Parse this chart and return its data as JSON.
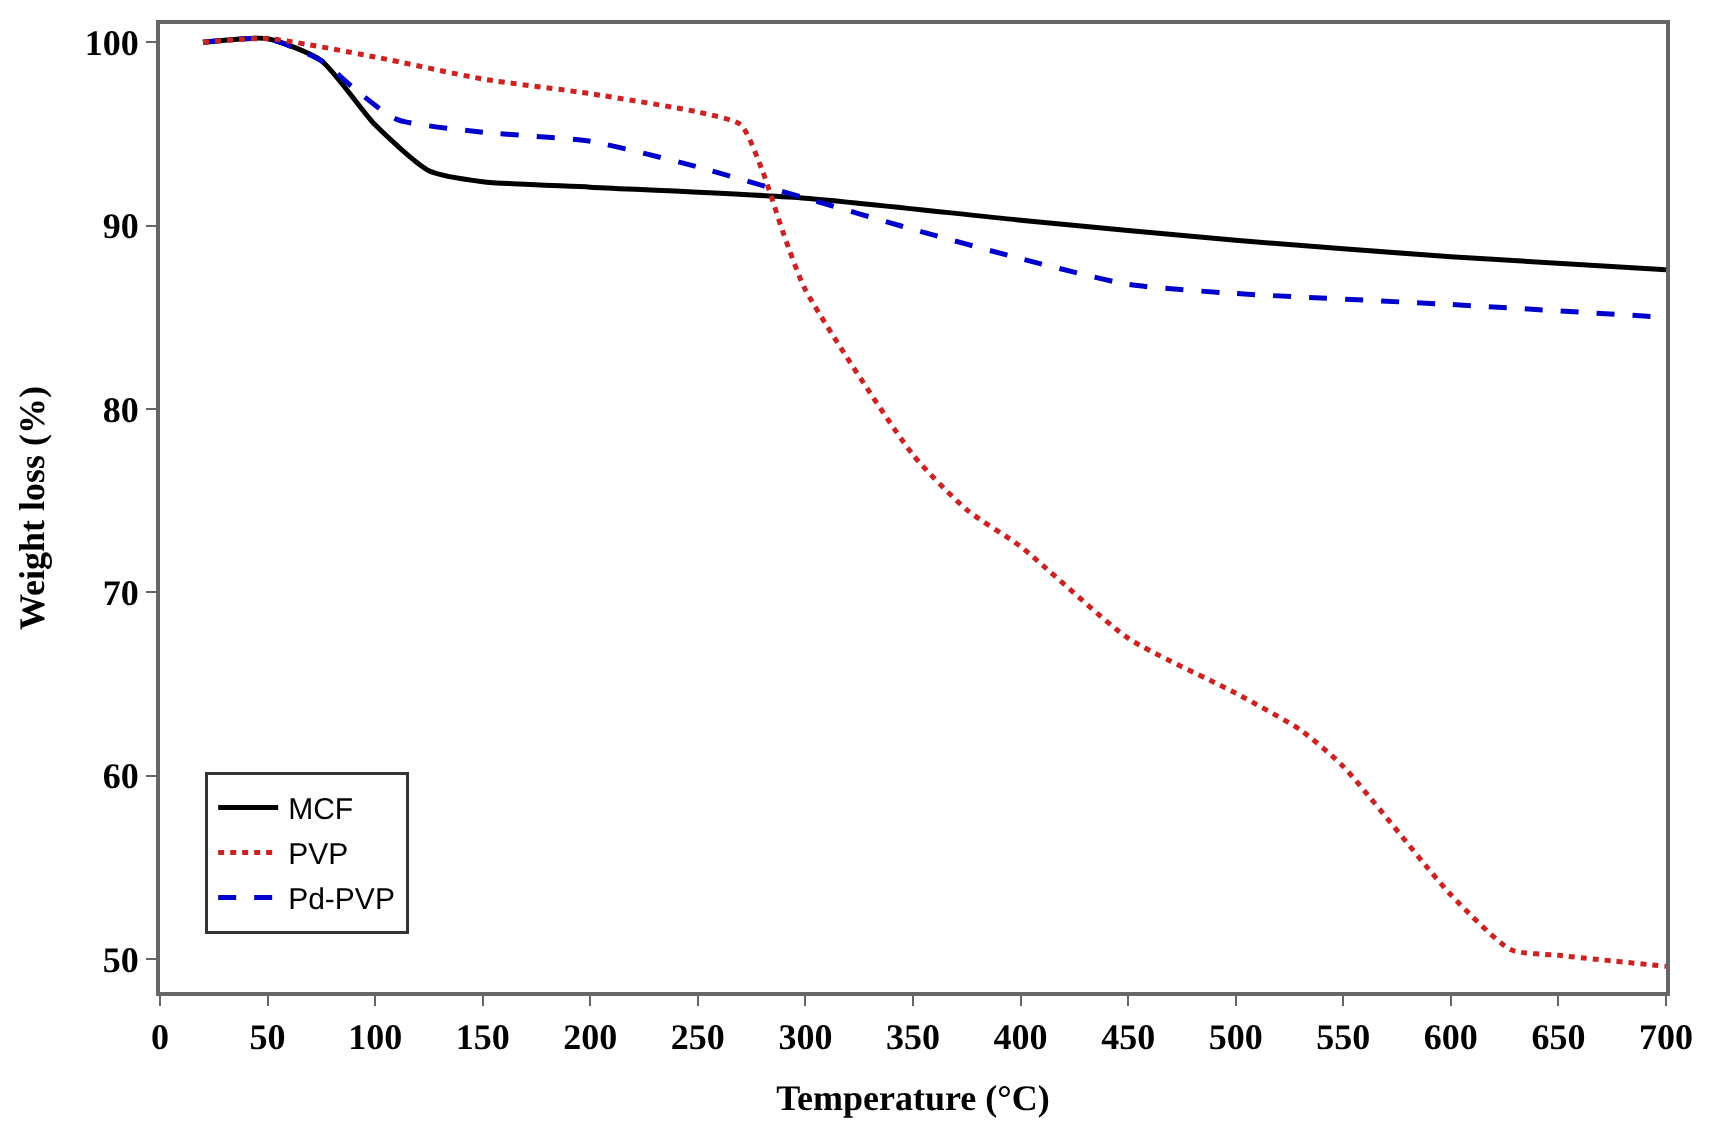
{
  "chart_data": {
    "type": "line",
    "xlabel": "Temperature (°C)",
    "ylabel": "Weight loss (%)",
    "xlim": [
      0,
      700
    ],
    "xticks": [
      0,
      50,
      100,
      150,
      200,
      250,
      300,
      350,
      400,
      450,
      500,
      550,
      600,
      650,
      700
    ],
    "ylim": [
      48.2,
      101
    ],
    "yticks": [
      50,
      60,
      70,
      80,
      90,
      100
    ],
    "legend": "bottom left",
    "marker": "none",
    "series": [
      {
        "name": "MCF",
        "color": "#000000",
        "line_style": "solid",
        "x": [
          20,
          50,
          75,
          100,
          125,
          150,
          200,
          300,
          400,
          500,
          600,
          700
        ],
        "values": [
          100.0,
          100.2,
          99,
          95.5,
          93,
          92.4,
          92.1,
          91.5,
          90.3,
          89.2,
          88.3,
          87.6
        ]
      },
      {
        "name": "PVP",
        "color": "#cc2222",
        "line_style": "dotted",
        "x": [
          20,
          50,
          100,
          150,
          200,
          250,
          270,
          280,
          290,
          300,
          350,
          375,
          400,
          450,
          500,
          530,
          550,
          600,
          628,
          650,
          700
        ],
        "values": [
          100,
          100.2,
          99.2,
          98,
          97.2,
          96.2,
          95.5,
          93,
          89.5,
          86.5,
          77.5,
          74.5,
          72.5,
          67.5,
          64.5,
          62.5,
          60.5,
          53.5,
          50.5,
          50.2,
          49.6
        ]
      },
      {
        "name": "Pd-PVP",
        "color": "#0000cc",
        "line_style": "dashed",
        "x": [
          20,
          50,
          75,
          90,
          110,
          150,
          200,
          250,
          300,
          350,
          400,
          450,
          500,
          600,
          700
        ],
        "values": [
          100,
          100.2,
          99,
          97.5,
          95.8,
          95.1,
          94.6,
          93.2,
          91.5,
          89.8,
          88.2,
          86.8,
          86.3,
          85.7,
          85.0
        ]
      }
    ]
  }
}
